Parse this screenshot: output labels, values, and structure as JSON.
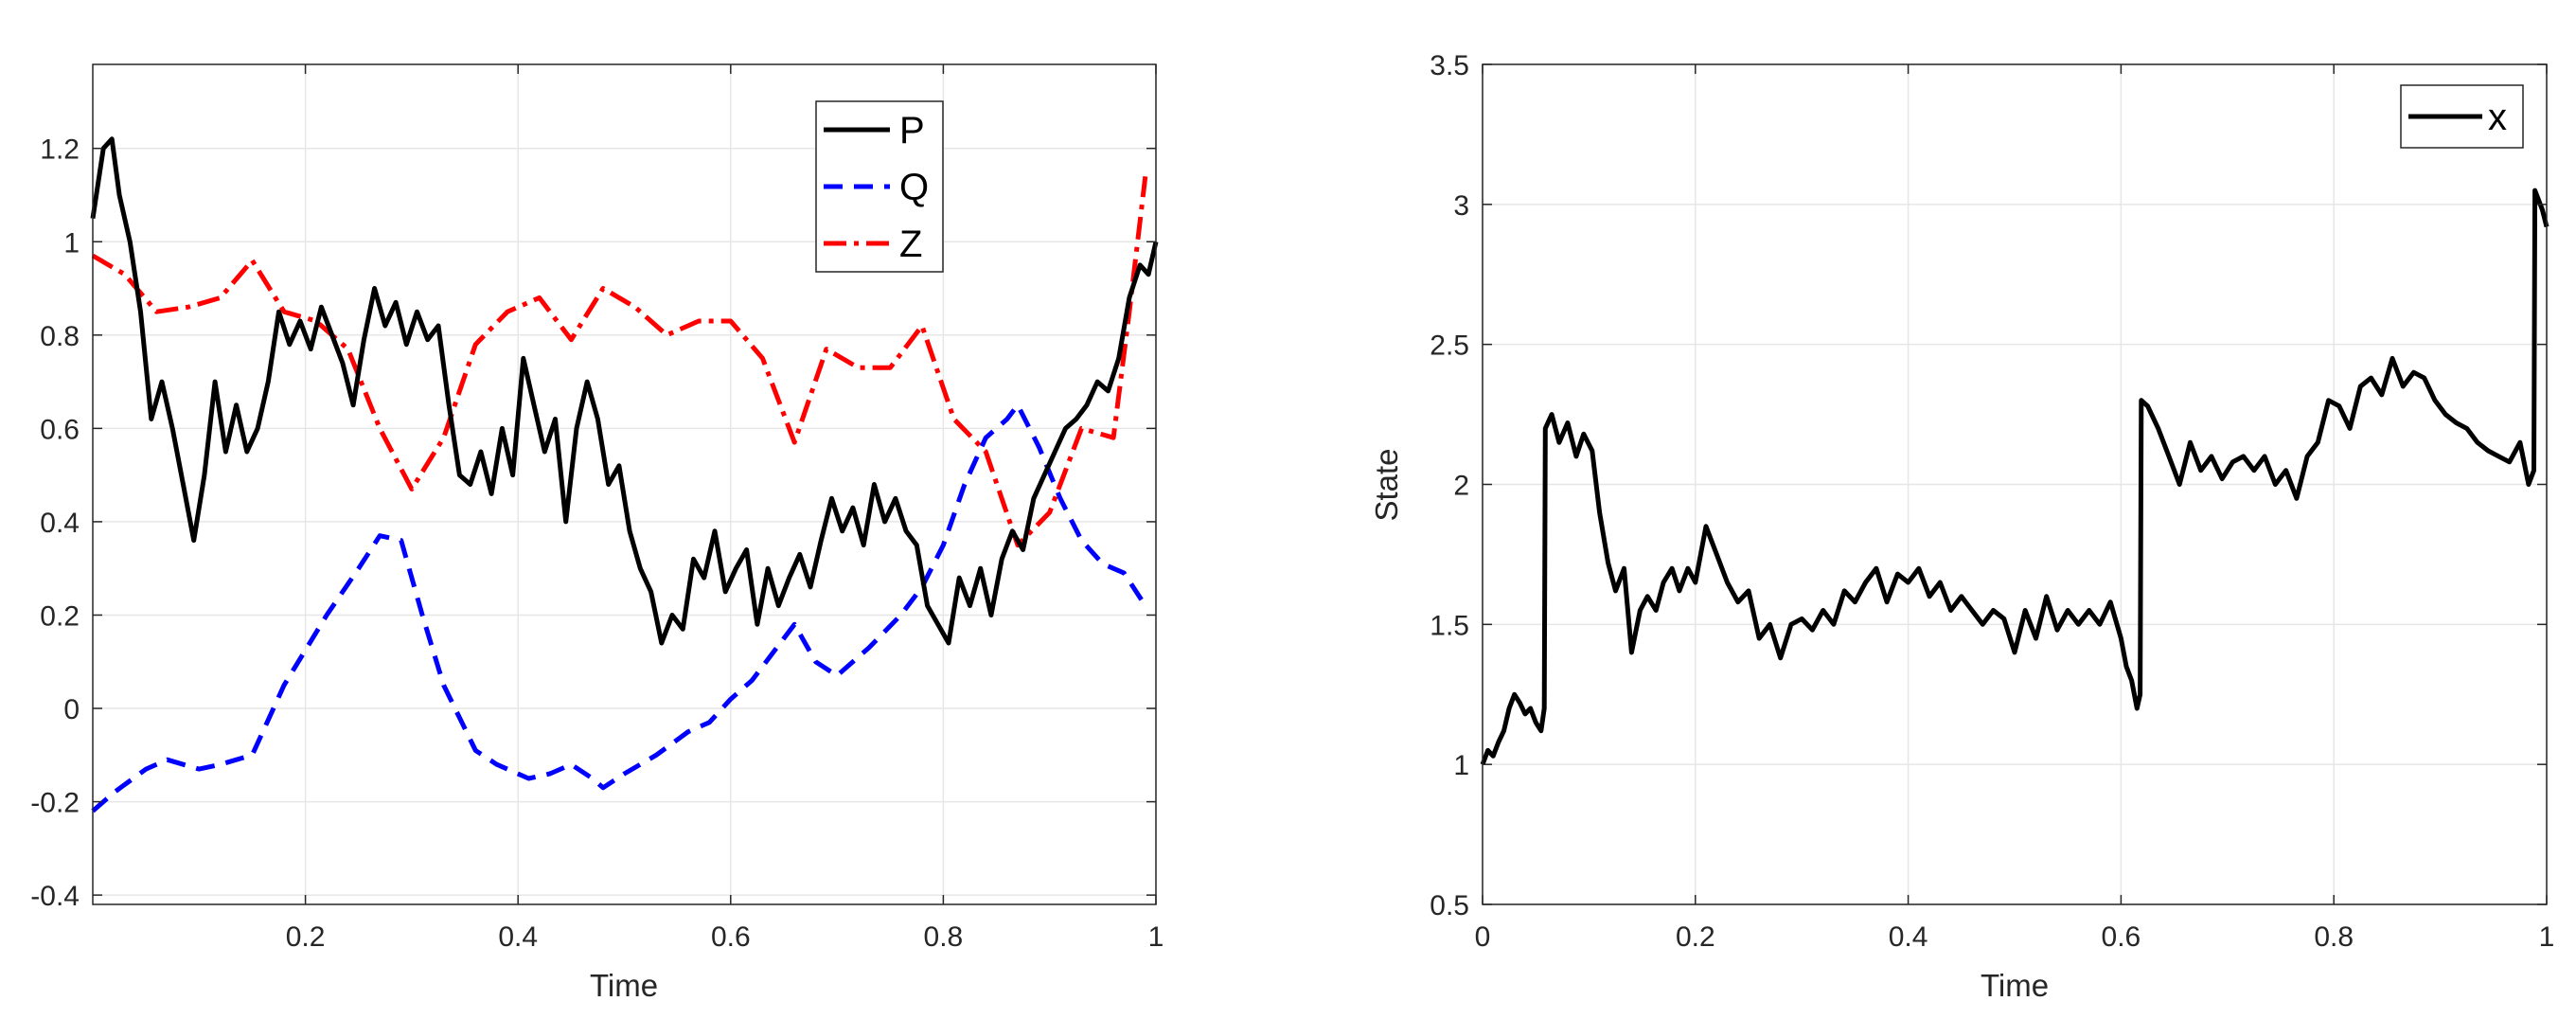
{
  "chart_data": [
    {
      "type": "line",
      "title": "",
      "xlabel": "Time",
      "ylabel": "",
      "xlim": [
        0,
        1
      ],
      "ylim": [
        -0.42,
        1.38
      ],
      "xticks": [
        0.2,
        0.4,
        0.6,
        0.8,
        1
      ],
      "xtick_labels": [
        "0.2",
        "0.4",
        "0.6",
        "0.8",
        "1"
      ],
      "yticks": [
        -0.4,
        -0.2,
        0,
        0.2,
        0.4,
        0.6,
        0.8,
        1,
        1.2
      ],
      "ytick_labels": [
        "-0.4",
        "-0.2",
        "0",
        "0.2",
        "0.4",
        "0.6",
        "0.8",
        "1",
        "1.2"
      ],
      "grid": true,
      "legend_position": "top-right",
      "series": [
        {
          "name": "P",
          "color": "#000000",
          "style": "solid",
          "x": [
            0.0,
            0.01,
            0.018,
            0.025,
            0.035,
            0.045,
            0.055,
            0.065,
            0.075,
            0.085,
            0.095,
            0.105,
            0.115,
            0.125,
            0.135,
            0.145,
            0.155,
            0.165,
            0.175,
            0.185,
            0.195,
            0.205,
            0.215,
            0.225,
            0.235,
            0.245,
            0.255,
            0.265,
            0.275,
            0.285,
            0.295,
            0.305,
            0.315,
            0.325,
            0.335,
            0.345,
            0.355,
            0.365,
            0.375,
            0.385,
            0.395,
            0.405,
            0.415,
            0.425,
            0.435,
            0.445,
            0.455,
            0.465,
            0.475,
            0.485,
            0.495,
            0.505,
            0.515,
            0.525,
            0.535,
            0.545,
            0.555,
            0.565,
            0.575,
            0.585,
            0.595,
            0.605,
            0.615,
            0.625,
            0.635,
            0.645,
            0.655,
            0.665,
            0.675,
            0.685,
            0.695,
            0.705,
            0.715,
            0.725,
            0.735,
            0.745,
            0.755,
            0.765,
            0.775,
            0.785,
            0.795,
            0.805,
            0.815,
            0.825,
            0.835,
            0.845,
            0.855,
            0.865,
            0.875,
            0.885,
            0.895,
            0.905,
            0.915,
            0.925,
            0.935,
            0.945,
            0.955,
            0.965,
            0.975,
            0.985,
            0.993,
            1.0
          ],
          "y": [
            1.05,
            1.2,
            1.22,
            1.1,
            1.0,
            0.85,
            0.62,
            0.7,
            0.6,
            0.48,
            0.36,
            0.5,
            0.7,
            0.55,
            0.65,
            0.55,
            0.6,
            0.7,
            0.85,
            0.78,
            0.83,
            0.77,
            0.86,
            0.8,
            0.74,
            0.65,
            0.79,
            0.9,
            0.82,
            0.87,
            0.78,
            0.85,
            0.79,
            0.82,
            0.65,
            0.5,
            0.48,
            0.55,
            0.46,
            0.6,
            0.5,
            0.75,
            0.65,
            0.55,
            0.62,
            0.4,
            0.6,
            0.7,
            0.62,
            0.48,
            0.52,
            0.38,
            0.3,
            0.25,
            0.14,
            0.2,
            0.17,
            0.32,
            0.28,
            0.38,
            0.25,
            0.3,
            0.34,
            0.18,
            0.3,
            0.22,
            0.28,
            0.33,
            0.26,
            0.36,
            0.45,
            0.38,
            0.43,
            0.35,
            0.48,
            0.4,
            0.45,
            0.38,
            0.35,
            0.22,
            0.18,
            0.14,
            0.28,
            0.22,
            0.3,
            0.2,
            0.32,
            0.38,
            0.34,
            0.45,
            0.5,
            0.55,
            0.6,
            0.62,
            0.65,
            0.7,
            0.68,
            0.75,
            0.88,
            0.95,
            0.93,
            1.0
          ]
        },
        {
          "name": "Q",
          "color": "#0000ff",
          "style": "dashed",
          "x": [
            0,
            0.02,
            0.05,
            0.07,
            0.1,
            0.12,
            0.15,
            0.18,
            0.22,
            0.25,
            0.27,
            0.29,
            0.31,
            0.33,
            0.36,
            0.38,
            0.41,
            0.43,
            0.45,
            0.47,
            0.48,
            0.5,
            0.53,
            0.56,
            0.58,
            0.6,
            0.62,
            0.64,
            0.66,
            0.68,
            0.7,
            0.73,
            0.76,
            0.78,
            0.8,
            0.82,
            0.84,
            0.86,
            0.87,
            0.89,
            0.91,
            0.93,
            0.95,
            0.97,
            0.99
          ],
          "y": [
            -0.22,
            -0.18,
            -0.13,
            -0.11,
            -0.13,
            -0.12,
            -0.1,
            0.05,
            0.2,
            0.3,
            0.37,
            0.36,
            0.2,
            0.05,
            -0.09,
            -0.12,
            -0.15,
            -0.14,
            -0.12,
            -0.15,
            -0.17,
            -0.14,
            -0.1,
            -0.05,
            -0.03,
            0.02,
            0.06,
            0.12,
            0.18,
            0.1,
            0.07,
            0.13,
            0.2,
            0.26,
            0.35,
            0.48,
            0.58,
            0.62,
            0.65,
            0.56,
            0.45,
            0.36,
            0.31,
            0.29,
            0.22
          ]
        },
        {
          "name": "Z",
          "color": "#ff0000",
          "style": "dash-dot",
          "x": [
            0,
            0.03,
            0.06,
            0.09,
            0.12,
            0.15,
            0.18,
            0.21,
            0.24,
            0.27,
            0.3,
            0.33,
            0.36,
            0.39,
            0.42,
            0.45,
            0.48,
            0.51,
            0.54,
            0.57,
            0.6,
            0.63,
            0.66,
            0.69,
            0.72,
            0.75,
            0.78,
            0.81,
            0.84,
            0.87,
            0.9,
            0.93,
            0.96,
            0.975,
            0.99
          ],
          "y": [
            0.97,
            0.93,
            0.85,
            0.86,
            0.88,
            0.96,
            0.85,
            0.83,
            0.77,
            0.6,
            0.47,
            0.58,
            0.78,
            0.85,
            0.88,
            0.79,
            0.9,
            0.86,
            0.8,
            0.83,
            0.83,
            0.75,
            0.57,
            0.77,
            0.73,
            0.73,
            0.82,
            0.62,
            0.55,
            0.35,
            0.42,
            0.6,
            0.58,
            0.85,
            1.14
          ]
        }
      ]
    },
    {
      "type": "line",
      "title": "",
      "xlabel": "Time",
      "ylabel": "State",
      "xlim": [
        0,
        1
      ],
      "ylim": [
        0.5,
        3.5
      ],
      "xticks": [
        0,
        0.2,
        0.4,
        0.6,
        0.8,
        1
      ],
      "xtick_labels": [
        "0",
        "0.2",
        "0.4",
        "0.6",
        "0.8",
        "1"
      ],
      "yticks": [
        0.5,
        1,
        1.5,
        2,
        2.5,
        3,
        3.5
      ],
      "ytick_labels": [
        "0.5",
        "1",
        "1.5",
        "2",
        "2.5",
        "3",
        "3.5"
      ],
      "grid": true,
      "legend_position": "top-right",
      "series": [
        {
          "name": "x",
          "color": "#000000",
          "style": "solid",
          "x": [
            0.0,
            0.005,
            0.01,
            0.015,
            0.02,
            0.025,
            0.03,
            0.035,
            0.04,
            0.045,
            0.05,
            0.055,
            0.058,
            0.059,
            0.065,
            0.072,
            0.08,
            0.088,
            0.095,
            0.103,
            0.11,
            0.118,
            0.125,
            0.133,
            0.14,
            0.148,
            0.155,
            0.163,
            0.17,
            0.178,
            0.185,
            0.193,
            0.2,
            0.21,
            0.22,
            0.23,
            0.24,
            0.25,
            0.26,
            0.27,
            0.28,
            0.29,
            0.3,
            0.31,
            0.32,
            0.33,
            0.34,
            0.35,
            0.36,
            0.37,
            0.38,
            0.39,
            0.4,
            0.41,
            0.42,
            0.43,
            0.44,
            0.45,
            0.46,
            0.47,
            0.48,
            0.49,
            0.5,
            0.51,
            0.52,
            0.53,
            0.54,
            0.55,
            0.56,
            0.57,
            0.58,
            0.59,
            0.6,
            0.605,
            0.61,
            0.615,
            0.618,
            0.619,
            0.625,
            0.635,
            0.645,
            0.655,
            0.665,
            0.675,
            0.685,
            0.695,
            0.705,
            0.715,
            0.725,
            0.735,
            0.745,
            0.755,
            0.765,
            0.775,
            0.785,
            0.795,
            0.805,
            0.815,
            0.825,
            0.835,
            0.845,
            0.855,
            0.865,
            0.875,
            0.885,
            0.895,
            0.905,
            0.915,
            0.925,
            0.935,
            0.945,
            0.955,
            0.965,
            0.975,
            0.983,
            0.988,
            0.989,
            0.992,
            0.996,
            1.0
          ],
          "y": [
            1.0,
            1.05,
            1.03,
            1.08,
            1.12,
            1.2,
            1.25,
            1.22,
            1.18,
            1.2,
            1.15,
            1.12,
            1.2,
            2.2,
            2.25,
            2.15,
            2.22,
            2.1,
            2.18,
            2.12,
            1.9,
            1.72,
            1.62,
            1.7,
            1.4,
            1.55,
            1.6,
            1.55,
            1.65,
            1.7,
            1.62,
            1.7,
            1.65,
            1.85,
            1.75,
            1.65,
            1.58,
            1.62,
            1.45,
            1.5,
            1.38,
            1.5,
            1.52,
            1.48,
            1.55,
            1.5,
            1.62,
            1.58,
            1.65,
            1.7,
            1.58,
            1.68,
            1.65,
            1.7,
            1.6,
            1.65,
            1.55,
            1.6,
            1.55,
            1.5,
            1.55,
            1.52,
            1.4,
            1.55,
            1.45,
            1.6,
            1.48,
            1.55,
            1.5,
            1.55,
            1.5,
            1.58,
            1.45,
            1.35,
            1.3,
            1.2,
            1.25,
            2.3,
            2.28,
            2.2,
            2.1,
            2.0,
            2.15,
            2.05,
            2.1,
            2.02,
            2.08,
            2.1,
            2.05,
            2.1,
            2.0,
            2.05,
            1.95,
            2.1,
            2.15,
            2.3,
            2.28,
            2.2,
            2.35,
            2.38,
            2.32,
            2.45,
            2.35,
            2.4,
            2.38,
            2.3,
            2.25,
            2.22,
            2.2,
            2.15,
            2.12,
            2.1,
            2.08,
            2.15,
            2.0,
            2.05,
            3.05,
            3.02,
            2.98,
            2.92
          ]
        }
      ]
    }
  ]
}
